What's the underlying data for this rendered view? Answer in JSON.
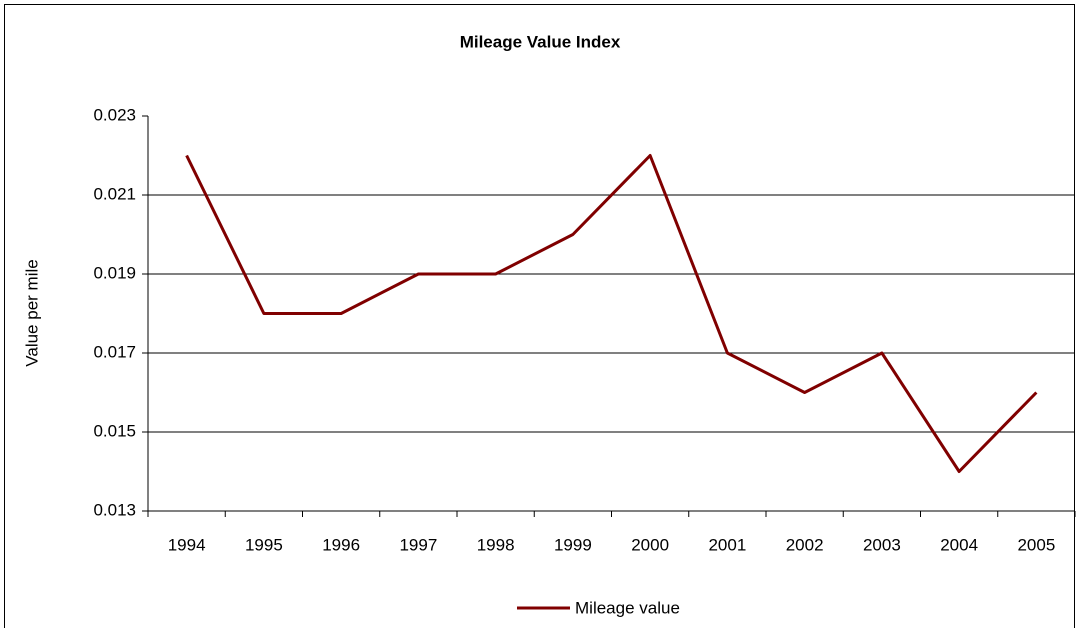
{
  "chart_data": {
    "type": "line",
    "title": "Mileage Value Index",
    "y_label": "Value per mile",
    "categories": [
      "1994",
      "1995",
      "1996",
      "1997",
      "1998",
      "1999",
      "2000",
      "2001",
      "2002",
      "2003",
      "2004",
      "2005"
    ],
    "series": [
      {
        "name": "Mileage value",
        "color": "#800000",
        "values": [
          0.022,
          0.018,
          0.018,
          0.019,
          0.019,
          0.02,
          0.022,
          0.017,
          0.016,
          0.017,
          0.014,
          0.016
        ]
      }
    ],
    "ylim": [
      0.013,
      0.023
    ],
    "yticks": [
      0.013,
      0.015,
      0.017,
      0.019,
      0.021,
      0.023
    ],
    "grid": true,
    "legend": "bottom"
  }
}
